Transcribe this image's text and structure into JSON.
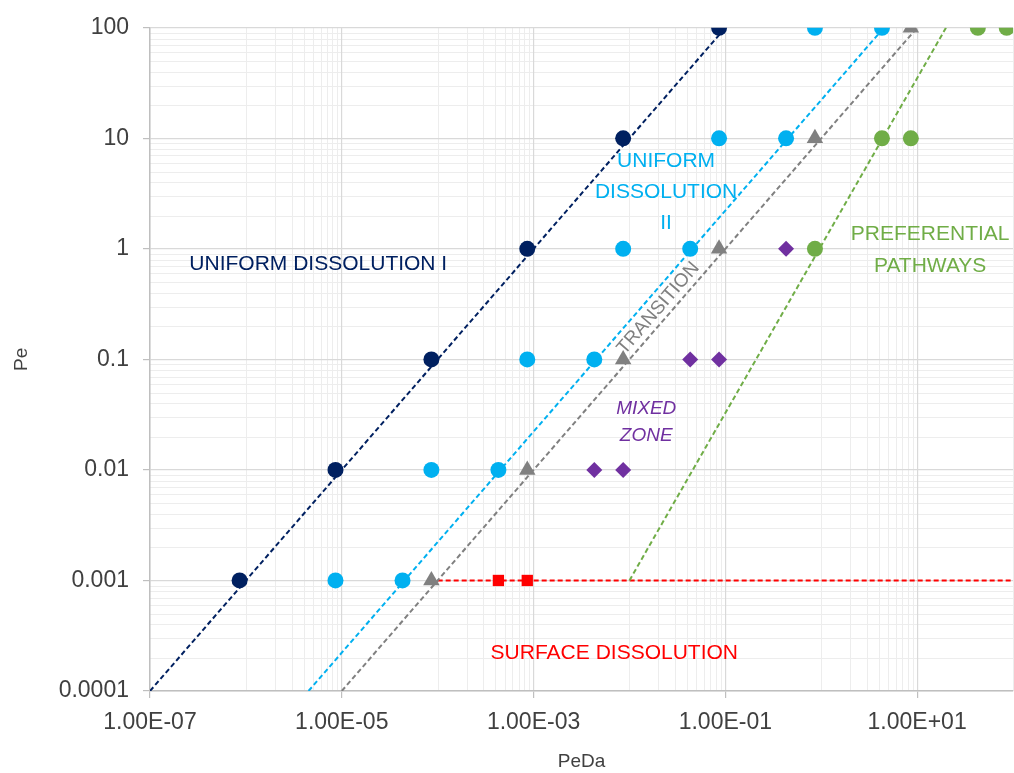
{
  "chart_data": {
    "type": "scatter",
    "xlabel": "PeDa",
    "ylabel": "Pe",
    "log": "xy",
    "grid": true,
    "xlim": [
      1e-07,
      100
    ],
    "ylim": [
      0.0001,
      100
    ],
    "xticks": [
      {
        "value": 1e-07,
        "label": "1.00E-07"
      },
      {
        "value": 1e-05,
        "label": "1.00E-05"
      },
      {
        "value": 0.001,
        "label": "1.00E-03"
      },
      {
        "value": 0.1,
        "label": "1.00E-01"
      },
      {
        "value": 10,
        "label": "1.00E+01"
      }
    ],
    "yticks": [
      0.0001,
      0.001,
      0.01,
      0.1,
      1,
      10,
      100
    ],
    "series": [
      {
        "name": "UNIFORM DISSOLUTION I",
        "color": "#002060",
        "marker": "circle",
        "x": [
          8.6e-07,
          8.6e-06,
          8.6e-05,
          0.00086,
          0.0086,
          0.086
        ],
        "values": [
          0.001,
          0.01,
          0.1,
          1,
          10,
          100
        ]
      },
      {
        "name": "UNIFORM DISSOLUTION II",
        "color": "#00b0f0",
        "marker": "circle",
        "x": [
          8.6e-06,
          4.3e-05,
          8.6e-05,
          0.00043,
          0.00086,
          0.0043,
          0.0086,
          0.043,
          0.086,
          0.43,
          0.86,
          4.3
        ],
        "values": [
          0.001,
          0.001,
          0.01,
          0.01,
          0.1,
          0.1,
          1,
          1,
          10,
          10,
          100,
          100
        ]
      },
      {
        "name": "TRANSITION",
        "color": "#808080",
        "marker": "triangle",
        "x": [
          8.6e-05,
          0.00086,
          0.0086,
          0.086,
          0.86,
          8.6
        ],
        "values": [
          0.001,
          0.01,
          0.1,
          1,
          10,
          100
        ]
      },
      {
        "name": "MIXED ZONE",
        "color": "#7030a0",
        "marker": "diamond",
        "x": [
          0.0043,
          0.0086,
          0.043,
          0.086,
          0.43
        ],
        "values": [
          0.01,
          0.01,
          0.1,
          0.1,
          1
        ]
      },
      {
        "name": "PREFERENTIAL PATHWAYS",
        "color": "#70ad47",
        "marker": "circle",
        "x": [
          0.86,
          4.3,
          8.6,
          43,
          86
        ],
        "values": [
          1,
          10,
          10,
          100,
          100
        ]
      },
      {
        "name": "SURFACE DISSOLUTION",
        "color": "#ff0000",
        "marker": "square",
        "x": [
          0.00043,
          0.00086
        ],
        "values": [
          0.001,
          0.001
        ]
      },
      {
        "type": "line",
        "color": "#002060",
        "line_style": "dashed",
        "x": [
          1e-07,
          0.1
        ],
        "values": [
          0.0001,
          100
        ]
      },
      {
        "type": "line",
        "color": "#00b0f0",
        "line_style": "dashed",
        "x": [
          4.5e-06,
          4.5
        ],
        "values": [
          0.0001,
          100
        ]
      },
      {
        "type": "line",
        "color": "#808080",
        "line_style": "dashed",
        "x": [
          1e-05,
          10
        ],
        "values": [
          0.0001,
          100
        ]
      },
      {
        "type": "line",
        "color": "#70ad47",
        "line_style": "dashed",
        "x": [
          0.01,
          20
        ],
        "values": [
          0.001,
          100
        ]
      },
      {
        "type": "line",
        "color": "#ff0000",
        "line_style": "dashed",
        "x": [
          0.0001,
          100
        ],
        "values": [
          0.001,
          0.001
        ]
      }
    ]
  }
}
